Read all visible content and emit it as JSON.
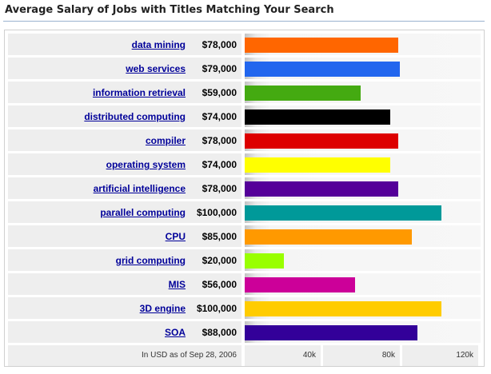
{
  "title": "Average Salary of Jobs with Titles Matching Your Search",
  "chart_data": {
    "type": "bar",
    "orientation": "horizontal",
    "title": "Average Salary of Jobs with Titles Matching Your Search",
    "categories": [
      "data mining",
      "web services",
      "information retrieval",
      "distributed computing",
      "compiler",
      "operating system",
      "artificial intelligence",
      "parallel computing",
      "CPU",
      "grid computing",
      "MIS",
      "3D engine",
      "SOA"
    ],
    "values": [
      78000,
      79000,
      59000,
      74000,
      78000,
      74000,
      78000,
      100000,
      85000,
      20000,
      56000,
      100000,
      88000
    ],
    "value_labels": [
      "$78,000",
      "$79,000",
      "$59,000",
      "$74,000",
      "$78,000",
      "$74,000",
      "$78,000",
      "$100,000",
      "$85,000",
      "$20,000",
      "$56,000",
      "$100,000",
      "$88,000"
    ],
    "colors": [
      "#ff6600",
      "#2266ee",
      "#44aa11",
      "#000000",
      "#dd0000",
      "#ffff00",
      "#550099",
      "#009999",
      "#ff9900",
      "#99ff00",
      "#cc0099",
      "#ffcc00",
      "#330099"
    ],
    "xlim": [
      0,
      120000
    ],
    "xticks": [
      40000,
      80000,
      120000
    ],
    "xtick_labels": [
      "40k",
      "80k",
      "120k"
    ],
    "note": "In USD as of Sep 28, 2006",
    "grid": false,
    "legend": "none"
  }
}
